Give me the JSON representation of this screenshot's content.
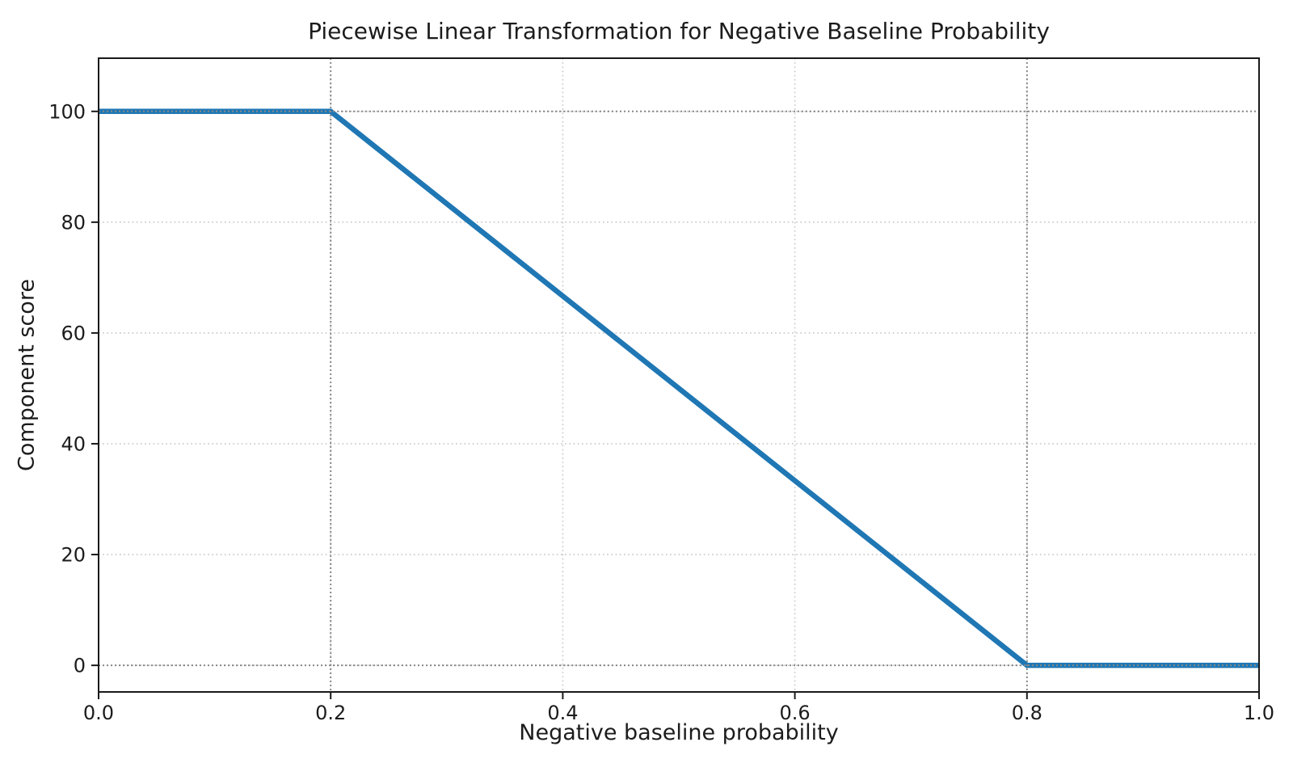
{
  "chart_data": {
    "type": "line",
    "title": "Piecewise Linear Transformation for Negative Baseline Probability",
    "xlabel": "Negative baseline probability",
    "ylabel": "Component score",
    "x": [
      0.0,
      0.2,
      0.8,
      1.0
    ],
    "y": [
      100,
      100,
      0,
      0
    ],
    "xlim": [
      0.0,
      1.0
    ],
    "ylim": [
      -4.8,
      109.6
    ],
    "xticks": [
      0.0,
      0.2,
      0.4,
      0.6,
      0.8,
      1.0
    ],
    "xtick_labels": [
      "0.0",
      "0.2",
      "0.4",
      "0.6",
      "0.8",
      "1.0"
    ],
    "yticks": [
      0,
      20,
      40,
      60,
      80,
      100
    ],
    "ytick_labels": [
      "0",
      "20",
      "40",
      "60",
      "80",
      "100"
    ],
    "grid": true,
    "grid_style": "dotted",
    "legend": null,
    "reference_lines": {
      "vertical_x": [
        0.2,
        0.8
      ],
      "horizontal_y": [
        0,
        100
      ]
    },
    "colors": {
      "line": "#1f77b4",
      "grid": "#c6c6c6",
      "reference": "#8a8a8a",
      "spine": "#1a1a1a",
      "text": "#1c1c1c",
      "background": "#ffffff"
    },
    "line_width": 6.5
  }
}
